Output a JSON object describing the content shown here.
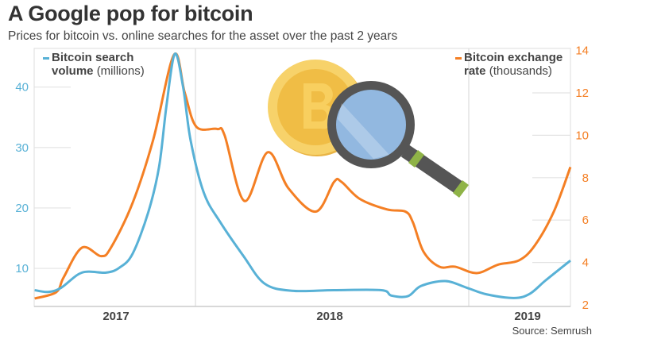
{
  "title": "A Google pop for bitcoin",
  "subtitle": "Prices for bitcoin vs. online searches for the asset over the past 2 years",
  "source": "Source: Semrush",
  "chart_data": {
    "type": "line",
    "title": "A Google pop for bitcoin",
    "subtitle": "Prices for bitcoin vs. online searches for the asset over the past 2 years",
    "x_ticks": [
      "2017",
      "2018",
      "2019"
    ],
    "grid": "partial",
    "series": [
      {
        "name": "Bitcoin search volume (millions)",
        "legend_bold": "Bitcoin search volume",
        "legend_unit": "(millions)",
        "axis": "left",
        "color": "#58b1d6",
        "points": [
          [
            "2017-07-02",
            6.4
          ],
          [
            "2017-07-18",
            6.1
          ],
          [
            "2017-08-03",
            6.8
          ],
          [
            "2017-08-28",
            9.3
          ],
          [
            "2017-09-26",
            9.3
          ],
          [
            "2017-10-12",
            10.1
          ],
          [
            "2017-10-28",
            12.4
          ],
          [
            "2017-11-16",
            19.3
          ],
          [
            "2017-11-29",
            26.8
          ],
          [
            "2017-12-08",
            37.0
          ],
          [
            "2017-12-18",
            45.5
          ],
          [
            "2017-12-28",
            40.0
          ],
          [
            "2018-01-06",
            31.2
          ],
          [
            "2018-01-22",
            22.5
          ],
          [
            "2018-02-11",
            17.6
          ],
          [
            "2018-03-11",
            12.0
          ],
          [
            "2018-04-05",
            7.5
          ],
          [
            "2018-05-08",
            6.3
          ],
          [
            "2018-06-28",
            6.4
          ],
          [
            "2018-08-24",
            6.4
          ],
          [
            "2018-09-05",
            5.5
          ],
          [
            "2018-09-25",
            5.4
          ],
          [
            "2018-10-11",
            7.1
          ],
          [
            "2018-11-09",
            7.9
          ],
          [
            "2018-12-05",
            6.8
          ],
          [
            "2018-12-29",
            5.7
          ],
          [
            "2019-01-31",
            5.1
          ],
          [
            "2019-02-19",
            5.8
          ],
          [
            "2019-03-10",
            8.0
          ],
          [
            "2019-04-09",
            11.3
          ]
        ]
      },
      {
        "name": "Bitcoin exchange rate (thousands)",
        "legend_bold": "Bitcoin exchange rate",
        "legend_unit": "(thousands)",
        "axis": "right",
        "color": "#f47f24",
        "points": [
          [
            "2017-07-02",
            2.3
          ],
          [
            "2017-07-28",
            2.6
          ],
          [
            "2017-08-06",
            3.3
          ],
          [
            "2017-08-28",
            4.7
          ],
          [
            "2017-09-20",
            4.3
          ],
          [
            "2017-10-02",
            4.7
          ],
          [
            "2017-10-28",
            6.8
          ],
          [
            "2017-11-22",
            9.8
          ],
          [
            "2017-12-17",
            13.8
          ],
          [
            "2017-12-30",
            12.0
          ],
          [
            "2018-01-13",
            10.4
          ],
          [
            "2018-02-07",
            10.3
          ],
          [
            "2018-02-16",
            10.0
          ],
          [
            "2018-03-12",
            6.9
          ],
          [
            "2018-04-09",
            9.2
          ],
          [
            "2018-05-04",
            7.5
          ],
          [
            "2018-06-06",
            6.4
          ],
          [
            "2018-06-28",
            7.8
          ],
          [
            "2018-07-07",
            7.8
          ],
          [
            "2018-07-29",
            7.0
          ],
          [
            "2018-08-31",
            6.5
          ],
          [
            "2018-09-22",
            6.4
          ],
          [
            "2018-10-01",
            5.9
          ],
          [
            "2018-10-14",
            4.5
          ],
          [
            "2018-11-02",
            3.8
          ],
          [
            "2018-11-21",
            3.8
          ],
          [
            "2018-12-17",
            3.5
          ],
          [
            "2019-01-12",
            3.9
          ],
          [
            "2019-02-06",
            4.1
          ],
          [
            "2019-02-25",
            4.8
          ],
          [
            "2019-03-20",
            6.4
          ],
          [
            "2019-04-09",
            8.5
          ]
        ]
      }
    ],
    "left_axis": {
      "ticks": [
        "10",
        "20",
        "30",
        "40"
      ],
      "range": [
        3.7,
        46.4
      ],
      "color": "#58b1d6"
    },
    "right_axis": {
      "ticks": [
        "2",
        "4",
        "6",
        "8",
        "10",
        "12",
        "14"
      ],
      "range": [
        2,
        14.1
      ],
      "color": "#f47f24"
    }
  },
  "illustration": [
    "bitcoin-coin",
    "magnifying-glass"
  ]
}
